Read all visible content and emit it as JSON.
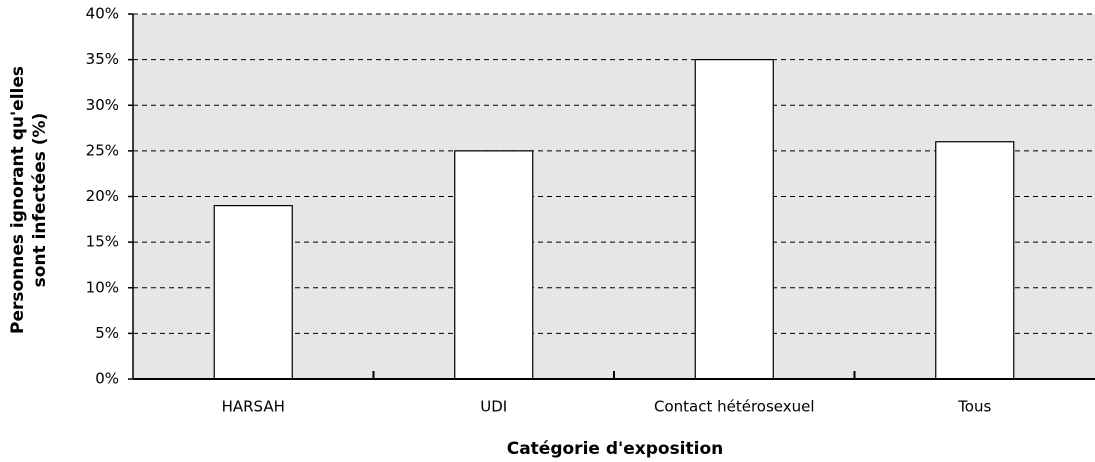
{
  "chart_data": {
    "type": "bar",
    "x_label": "Catégorie d'exposition",
    "y_label": [
      "Personnes ignorant qu'elles",
      "sont infectées (%)"
    ],
    "categories": [
      "HARSAH",
      "UDI",
      "Contact hétérosexuel",
      "Tous"
    ],
    "values": [
      19,
      25,
      35,
      26
    ],
    "color": "#ffffff",
    "ylim": [
      0,
      40
    ],
    "yticks": [
      {
        "value": 0,
        "label": "0%"
      },
      {
        "value": 5,
        "label": "5%"
      },
      {
        "value": 10,
        "label": "10%"
      },
      {
        "value": 15,
        "label": "15%"
      },
      {
        "value": 20,
        "label": "20%"
      },
      {
        "value": 25,
        "label": "25%"
      },
      {
        "value": 30,
        "label": "30%"
      },
      {
        "value": 35,
        "label": "35%"
      },
      {
        "value": 40,
        "label": "40%"
      }
    ],
    "grid": true
  }
}
